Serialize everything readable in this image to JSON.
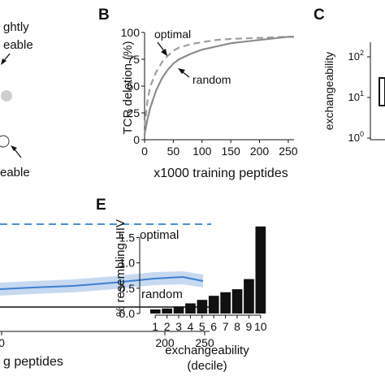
{
  "panel_a": {
    "label_top_line1": "ghtly",
    "label_top_line2": "eable",
    "label_bottom": "eable"
  },
  "panel_d": {
    "optimal_label": "optimal",
    "random_label": "random",
    "x_ticks": [
      "0",
      "200",
      "250"
    ],
    "xlabel": "g peptides"
  },
  "panel_c": {
    "panel_label": "C",
    "ylabel": "exchangeability",
    "y_ticks": [
      "10^2",
      "10^1",
      "10^0"
    ]
  },
  "chart_data": [
    {
      "panel": "B",
      "type": "line",
      "xlabel": "x1000 training peptides",
      "ylabel": "TCR deletion (%)",
      "xlim": [
        0,
        260
      ],
      "ylim": [
        0,
        100
      ],
      "x_ticks": [
        0,
        50,
        100,
        150,
        200,
        250
      ],
      "y_ticks": [
        0,
        25,
        50,
        75,
        100
      ],
      "colors": {
        "optimal": "#9e9e9e",
        "random": "#8c8c8c"
      },
      "series": [
        {
          "name": "optimal",
          "style": "dashed",
          "x": [
            0,
            5,
            10,
            20,
            30,
            40,
            50,
            60,
            80,
            100,
            125,
            150,
            200,
            250,
            260
          ],
          "y": [
            12,
            36,
            50,
            63,
            72,
            78,
            83,
            86,
            89,
            91,
            93,
            94,
            95,
            96,
            96
          ]
        },
        {
          "name": "random",
          "style": "solid",
          "x": [
            0,
            5,
            10,
            20,
            30,
            40,
            50,
            60,
            80,
            100,
            125,
            150,
            200,
            250,
            260
          ],
          "y": [
            5,
            19,
            30,
            46,
            57,
            65,
            71,
            75,
            80,
            84,
            87,
            90,
            93,
            96,
            96
          ]
        }
      ]
    },
    {
      "panel": "E",
      "type": "bar",
      "xlabel": "exchangeability",
      "xlabel2": "(decile)",
      "ylabel": "% resembling HIV",
      "ylim": [
        0,
        1.7
      ],
      "y_ticks": [
        0.0,
        0.5,
        1.0,
        1.5
      ],
      "y_tick_labels": [
        "0.0",
        "0.5",
        "1.0",
        "1.5"
      ],
      "bar_color": "#111111",
      "categories": [
        "1",
        "2",
        "3",
        "4",
        "5",
        "6",
        "7",
        "8",
        "9",
        "10"
      ],
      "values": [
        0.08,
        0.1,
        0.14,
        0.2,
        0.27,
        0.35,
        0.42,
        0.48,
        0.68,
        1.72
      ]
    }
  ]
}
